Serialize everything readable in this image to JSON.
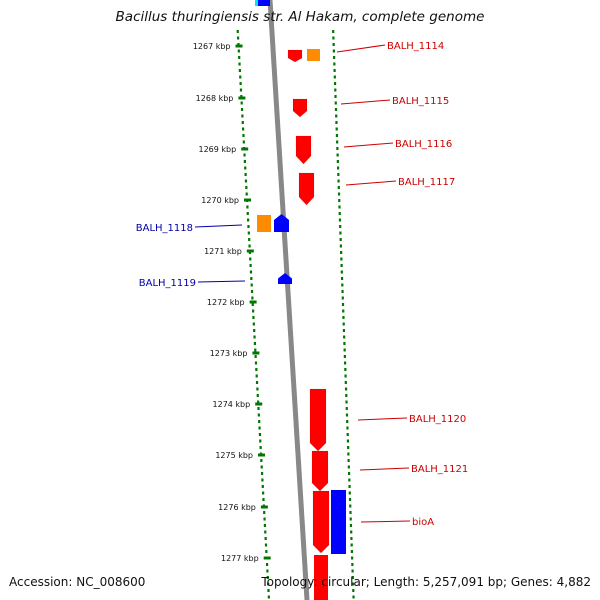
{
  "title": "Bacillus thuringiensis str. Al Hakam, complete genome",
  "footer": {
    "accession": "Accession: NC_008600",
    "summary": "Topology: circular; Length: 5,257,091 bp; Genes: 4,882"
  },
  "colors": {
    "forward": "#ff0000",
    "reverse": "#0000ff",
    "rna": "#ff8c00",
    "top_fragment": "#00e5ee",
    "tick": "#007700",
    "backbone": "#888888",
    "label_forward": "#cc0000",
    "label_reverse": "#0000aa"
  },
  "ticks": [
    "1267 kbp",
    "1268 kbp",
    "1269 kbp",
    "1270 kbp",
    "1271 kbp",
    "1272 kbp",
    "1273 kbp",
    "1274 kbp",
    "1275 kbp",
    "1276 kbp",
    "1277 kbp"
  ],
  "genes": [
    {
      "label": "BALH_1114",
      "strand": "forward"
    },
    {
      "label": "BALH_1115",
      "strand": "forward"
    },
    {
      "label": "BALH_1116",
      "strand": "forward"
    },
    {
      "label": "BALH_1117",
      "strand": "forward"
    },
    {
      "label": "BALH_1118",
      "strand": "reverse"
    },
    {
      "label": "BALH_1119",
      "strand": "reverse"
    },
    {
      "label": "BALH_1120",
      "strand": "forward"
    },
    {
      "label": "BALH_1121",
      "strand": "forward"
    },
    {
      "label": "bioA",
      "strand": "forward"
    }
  ]
}
